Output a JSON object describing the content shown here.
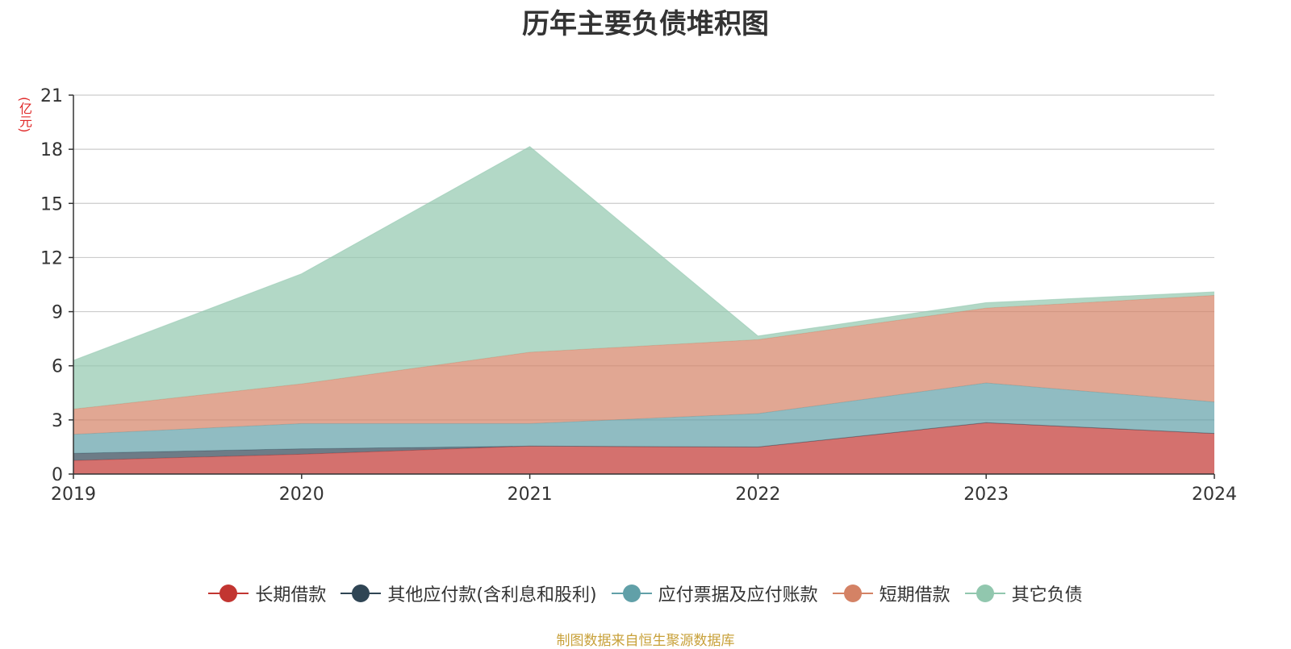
{
  "chart_data": {
    "type": "area",
    "stacked": true,
    "title": "历年主要负债堆积图",
    "unit_label": "(亿元)",
    "x": [
      "2019",
      "2020",
      "2021",
      "2022",
      "2023",
      "2024"
    ],
    "ylim": [
      0,
      21
    ],
    "yticks": [
      0,
      3,
      6,
      9,
      12,
      15,
      18,
      21
    ],
    "grid": true,
    "legend_position": "bottom",
    "series": [
      {
        "name": "长期借款",
        "color": "#c23531",
        "values": [
          0.75,
          1.1,
          1.55,
          1.5,
          2.85,
          2.25
        ]
      },
      {
        "name": "其他应付款(含利息和股利)",
        "color": "#2f4554",
        "values": [
          0.4,
          0.3,
          0.0,
          0.0,
          0.0,
          0.0
        ]
      },
      {
        "name": "应付票据及应付账款",
        "color": "#61a0a8",
        "values": [
          1.05,
          1.4,
          1.25,
          1.85,
          2.2,
          1.75
        ]
      },
      {
        "name": "短期借款",
        "color": "#d48265",
        "values": [
          1.4,
          2.2,
          3.95,
          4.1,
          4.15,
          5.9
        ]
      },
      {
        "name": "其它负债",
        "color": "#91c7ae",
        "values": [
          2.7,
          6.1,
          11.4,
          0.2,
          0.3,
          0.2
        ]
      }
    ],
    "source_note": "制图数据来自恒生聚源数据库"
  }
}
